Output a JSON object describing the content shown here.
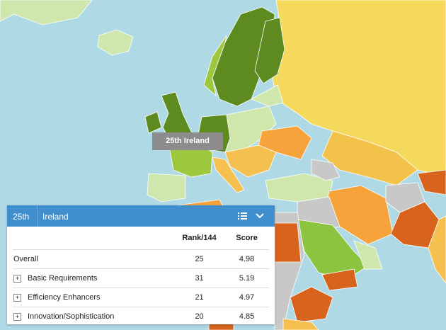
{
  "tooltip": {
    "text": "25th Ireland"
  },
  "panel": {
    "header": {
      "rank": "25th",
      "country": "Ireland"
    },
    "table": {
      "columns": [
        "Rank/144",
        "Score"
      ],
      "rows": [
        {
          "label": "Overall",
          "rank": 25,
          "score": 4.98
        },
        {
          "label": "Basic Requirements",
          "rank": 31,
          "score": 5.19
        },
        {
          "label": "Efficiency Enhancers",
          "rank": 21,
          "score": 4.97
        },
        {
          "label": "Innovation/Sophistication",
          "rank": 20,
          "score": 4.85
        }
      ]
    }
  }
}
